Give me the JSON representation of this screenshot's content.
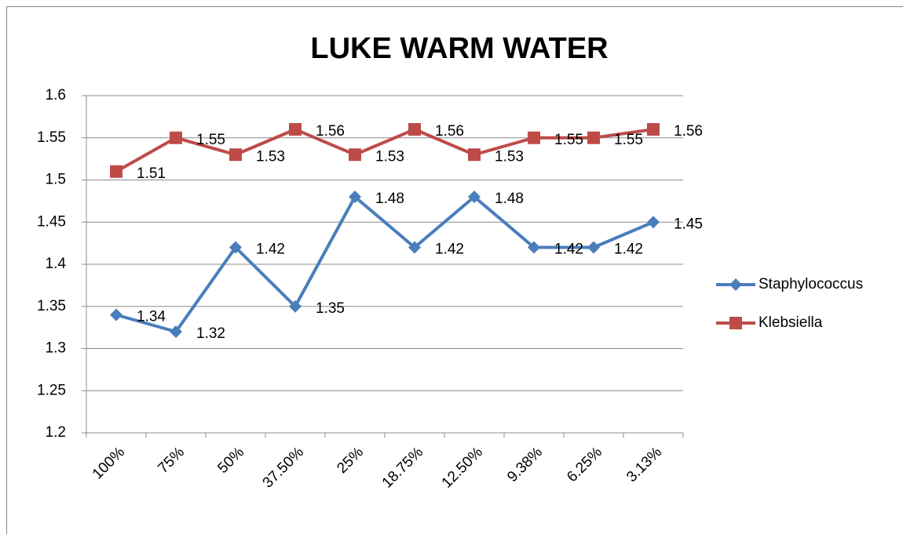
{
  "chart_data": {
    "type": "line",
    "title": "LUKE WARM WATER",
    "categories": [
      "100%",
      "75%",
      "50%",
      "37.50%",
      "25%",
      "18.75%",
      "12.50%",
      "9.38%",
      "6.25%",
      "3.13%"
    ],
    "series": [
      {
        "name": "Staphylococcus",
        "color": "#4a7ebb",
        "marker": "diamond",
        "values": [
          1.34,
          1.32,
          1.42,
          1.35,
          1.48,
          1.42,
          1.48,
          1.42,
          1.42,
          1.45
        ]
      },
      {
        "name": "Klebsiella",
        "color": "#be4b48",
        "marker": "square",
        "values": [
          1.51,
          1.55,
          1.53,
          1.56,
          1.53,
          1.56,
          1.53,
          1.55,
          1.55,
          1.56
        ]
      }
    ],
    "ylim": [
      1.2,
      1.6
    ],
    "yticks": [
      1.2,
      1.25,
      1.3,
      1.35,
      1.4,
      1.45,
      1.5,
      1.55,
      1.6
    ],
    "grid": true,
    "legend": "right",
    "data_labels": true
  }
}
